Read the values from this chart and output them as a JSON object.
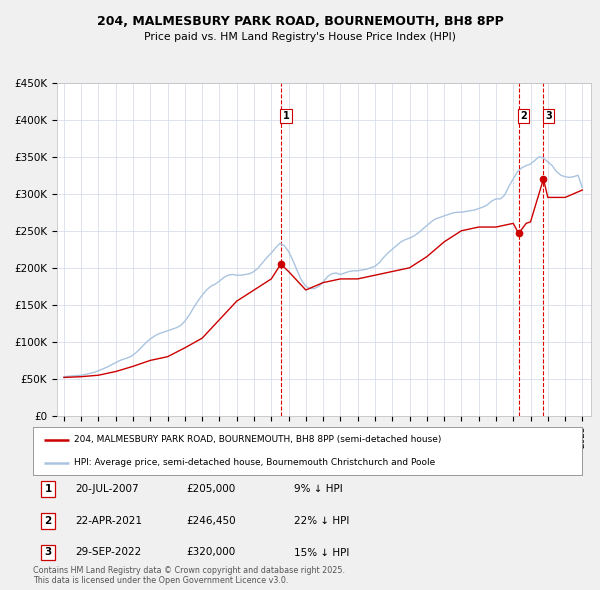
{
  "title": "204, MALMESBURY PARK ROAD, BOURNEMOUTH, BH8 8PP",
  "subtitle": "Price paid vs. HM Land Registry's House Price Index (HPI)",
  "background_color": "#f0f0f0",
  "plot_bg_color": "#ffffff",
  "ylim": [
    0,
    450000
  ],
  "yticks": [
    0,
    50000,
    100000,
    150000,
    200000,
    250000,
    300000,
    350000,
    400000,
    450000
  ],
  "ytick_labels": [
    "£0",
    "£50K",
    "£100K",
    "£150K",
    "£200K",
    "£250K",
    "£300K",
    "£350K",
    "£400K",
    "£450K"
  ],
  "xlim_start": 1994.6,
  "xlim_end": 2025.5,
  "sale_dates": [
    2007.55,
    2021.31,
    2022.75
  ],
  "sale_prices": [
    205000,
    246450,
    320000
  ],
  "sale_labels": [
    "1",
    "2",
    "3"
  ],
  "hpi_line_color": "#aac4e0",
  "sale_line_color": "#cc0000",
  "sale_dot_color": "#cc0000",
  "vline_color": "#dd0000",
  "legend_entries": [
    "204, MALMESBURY PARK ROAD, BOURNEMOUTH, BH8 8PP (semi-detached house)",
    "HPI: Average price, semi-detached house, Bournemouth Christchurch and Poole"
  ],
  "table_rows": [
    [
      "1",
      "20-JUL-2007",
      "£205,000",
      "9% ↓ HPI"
    ],
    [
      "2",
      "22-APR-2021",
      "£246,450",
      "22% ↓ HPI"
    ],
    [
      "3",
      "29-SEP-2022",
      "£320,000",
      "15% ↓ HPI"
    ]
  ],
  "footer_text": "Contains HM Land Registry data © Crown copyright and database right 2025.\nThis data is licensed under the Open Government Licence v3.0.",
  "hpi_data_x": [
    1995.0,
    1995.25,
    1995.5,
    1995.75,
    1996.0,
    1996.25,
    1996.5,
    1996.75,
    1997.0,
    1997.25,
    1997.5,
    1997.75,
    1998.0,
    1998.25,
    1998.5,
    1998.75,
    1999.0,
    1999.25,
    1999.5,
    1999.75,
    2000.0,
    2000.25,
    2000.5,
    2000.75,
    2001.0,
    2001.25,
    2001.5,
    2001.75,
    2002.0,
    2002.25,
    2002.5,
    2002.75,
    2003.0,
    2003.25,
    2003.5,
    2003.75,
    2004.0,
    2004.25,
    2004.5,
    2004.75,
    2005.0,
    2005.25,
    2005.5,
    2005.75,
    2006.0,
    2006.25,
    2006.5,
    2006.75,
    2007.0,
    2007.25,
    2007.5,
    2007.75,
    2008.0,
    2008.25,
    2008.5,
    2008.75,
    2009.0,
    2009.25,
    2009.5,
    2009.75,
    2010.0,
    2010.25,
    2010.5,
    2010.75,
    2011.0,
    2011.25,
    2011.5,
    2011.75,
    2012.0,
    2012.25,
    2012.5,
    2012.75,
    2013.0,
    2013.25,
    2013.5,
    2013.75,
    2014.0,
    2014.25,
    2014.5,
    2014.75,
    2015.0,
    2015.25,
    2015.5,
    2015.75,
    2016.0,
    2016.25,
    2016.5,
    2016.75,
    2017.0,
    2017.25,
    2017.5,
    2017.75,
    2018.0,
    2018.25,
    2018.5,
    2018.75,
    2019.0,
    2019.25,
    2019.5,
    2019.75,
    2020.0,
    2020.25,
    2020.5,
    2020.75,
    2021.0,
    2021.25,
    2021.5,
    2021.75,
    2022.0,
    2022.25,
    2022.5,
    2022.75,
    2023.0,
    2023.25,
    2023.5,
    2023.75,
    2024.0,
    2024.25,
    2024.5,
    2024.75,
    2025.0
  ],
  "hpi_data_y": [
    53000,
    53500,
    54000,
    54500,
    55000,
    56000,
    57500,
    59000,
    61000,
    63500,
    66000,
    69000,
    72000,
    75000,
    77000,
    79000,
    82000,
    87000,
    93000,
    99000,
    104000,
    108000,
    111000,
    113000,
    115000,
    117000,
    119000,
    122000,
    128000,
    136000,
    146000,
    155000,
    163000,
    170000,
    175000,
    178000,
    182000,
    187000,
    190000,
    191000,
    190000,
    190000,
    191000,
    192000,
    195000,
    200000,
    207000,
    214000,
    220000,
    227000,
    233000,
    230000,
    222000,
    210000,
    196000,
    183000,
    175000,
    172000,
    172000,
    175000,
    181000,
    188000,
    192000,
    193000,
    191000,
    193000,
    195000,
    196000,
    196000,
    197000,
    198000,
    200000,
    202000,
    207000,
    214000,
    220000,
    225000,
    230000,
    235000,
    238000,
    240000,
    243000,
    247000,
    252000,
    257000,
    262000,
    266000,
    268000,
    270000,
    272000,
    274000,
    275000,
    275000,
    276000,
    277000,
    278000,
    280000,
    282000,
    285000,
    290000,
    293000,
    293000,
    298000,
    310000,
    320000,
    330000,
    335000,
    338000,
    340000,
    345000,
    350000,
    348000,
    343000,
    338000,
    330000,
    325000,
    323000,
    322000,
    323000,
    325000,
    308000
  ],
  "sale_line_x": [
    1995.0,
    1996.0,
    1997.0,
    1998.0,
    1999.0,
    2000.0,
    2001.0,
    2002.0,
    2003.0,
    2004.0,
    2005.0,
    2006.0,
    2007.0,
    2007.55,
    2008.0,
    2009.0,
    2010.0,
    2011.0,
    2012.0,
    2013.0,
    2014.0,
    2015.0,
    2016.0,
    2017.0,
    2018.0,
    2019.0,
    2020.0,
    2021.0,
    2021.31,
    2021.75,
    2022.0,
    2022.75,
    2023.0,
    2024.0,
    2025.0
  ],
  "sale_line_y": [
    52000,
    53000,
    55000,
    60000,
    67000,
    75000,
    80000,
    92000,
    105000,
    130000,
    155000,
    170000,
    185000,
    205000,
    195000,
    170000,
    180000,
    185000,
    185000,
    190000,
    195000,
    200000,
    215000,
    235000,
    250000,
    255000,
    255000,
    260000,
    246450,
    260000,
    262000,
    320000,
    295000,
    295000,
    305000
  ]
}
